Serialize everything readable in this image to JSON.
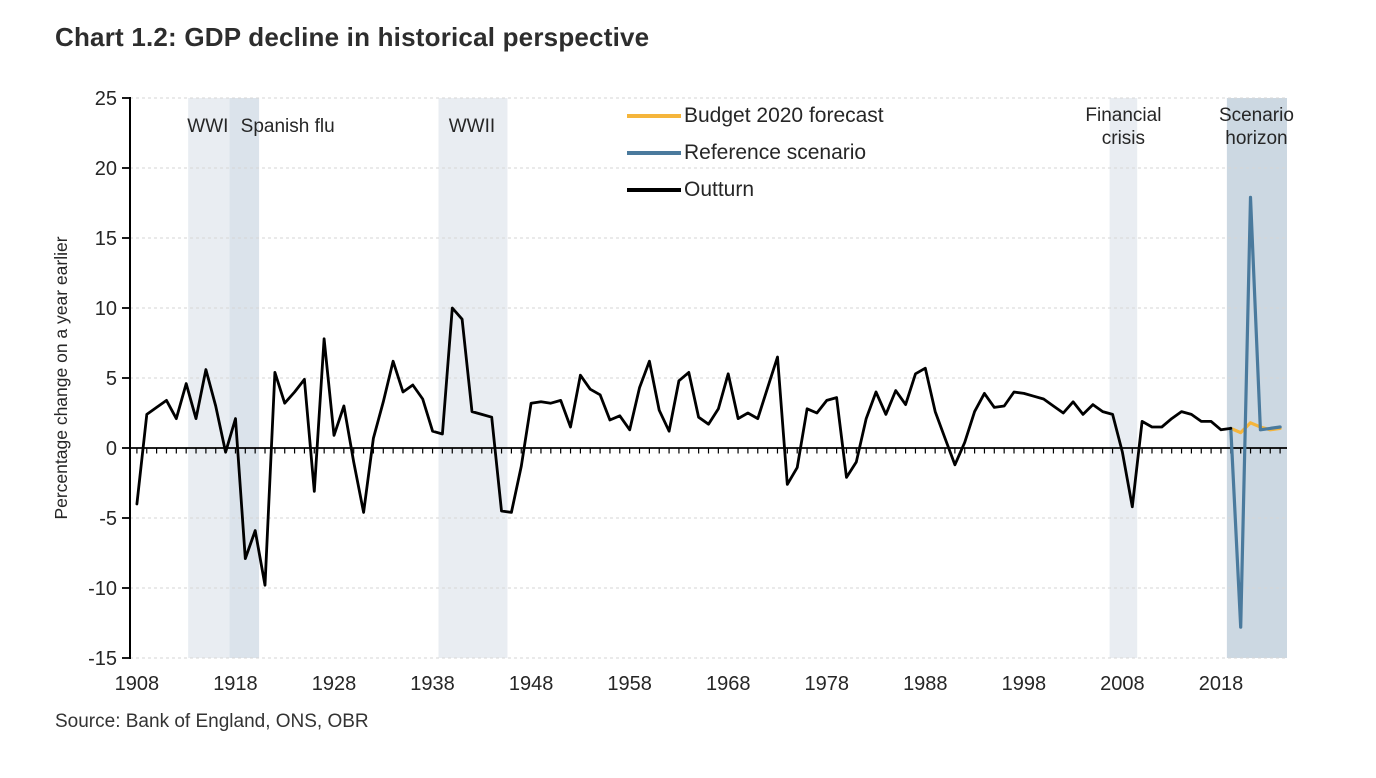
{
  "title": "Chart 1.2: GDP decline in historical perspective",
  "source": "Source: Bank of England, ONS, OBR",
  "legend": [
    {
      "label": "Budget 2020 forecast",
      "color": "#F5B53B"
    },
    {
      "label": "Reference scenario",
      "color": "#4A7A9D"
    },
    {
      "label": "Outturn",
      "color": "#000000"
    }
  ],
  "chart_data": {
    "type": "line",
    "title": "Chart 1.2: GDP decline in historical perspective",
    "xlabel": "",
    "ylabel": "Percentage change on a year earlier",
    "ylim": [
      -15,
      25
    ],
    "yticks": [
      25,
      20,
      15,
      10,
      5,
      0,
      -5,
      -10,
      -15
    ],
    "xlim": [
      1907.3,
      2024.7
    ],
    "xticks": [
      1908,
      1918,
      1928,
      1938,
      1948,
      1958,
      1968,
      1978,
      1988,
      1998,
      2008,
      2018
    ],
    "grid": "horizontal-dashed",
    "legend_position": "top-center",
    "zero_axis_year_ticks": true,
    "bands": [
      {
        "label": "WWI",
        "label_lines": [
          "WWI"
        ],
        "label_x": 1915.2,
        "from": 1913.2,
        "to": 1917.4,
        "color": "#E9EDF2"
      },
      {
        "label": "Spanish flu",
        "label_lines": [
          "Spanish flu"
        ],
        "label_x": 1923.3,
        "from": 1917.4,
        "to": 1920.4,
        "color": "#DBE3EB"
      },
      {
        "label": "WWII",
        "label_lines": [
          "WWII"
        ],
        "label_x": 1942.0,
        "from": 1938.6,
        "to": 1945.6,
        "color": "#E9EDF2"
      },
      {
        "label": "Financial crisis",
        "label_lines": [
          "Financial",
          "crisis"
        ],
        "label_x": 2008.1,
        "from": 2006.7,
        "to": 2009.5,
        "color": "#E9EDF2"
      },
      {
        "label": "Scenario horizon",
        "label_lines": [
          "Scenario",
          "horizon"
        ],
        "label_x": 2021.6,
        "from": 2018.6,
        "to": 2024.7,
        "color": "#CCD8E2"
      }
    ],
    "series": [
      {
        "name": "Budget 2020 forecast",
        "color": "#F5B53B",
        "width": 3.2,
        "x_start": 2019,
        "values": [
          1.4,
          1.1,
          1.8,
          1.5,
          1.3,
          1.4
        ]
      },
      {
        "name": "Reference scenario",
        "color": "#4A7A9D",
        "width": 3.2,
        "x_start": 2019,
        "values": [
          1.4,
          -12.8,
          17.9,
          1.3,
          1.4,
          1.5
        ]
      },
      {
        "name": "Outturn",
        "color": "#000000",
        "width": 2.8,
        "x_start": 1908,
        "values": [
          -4.0,
          2.4,
          2.9,
          3.4,
          2.1,
          4.6,
          2.1,
          5.6,
          3.0,
          -0.3,
          2.1,
          -7.9,
          -5.9,
          -9.8,
          5.4,
          3.2,
          4.0,
          4.9,
          -3.1,
          7.8,
          0.9,
          3.0,
          -1.0,
          -4.6,
          0.7,
          3.3,
          6.2,
          4.0,
          4.5,
          3.5,
          1.2,
          1.0,
          10.0,
          9.2,
          2.6,
          2.4,
          2.2,
          -4.5,
          -4.6,
          -1.3,
          3.2,
          3.3,
          3.2,
          3.4,
          1.5,
          5.2,
          4.2,
          3.8,
          2.0,
          2.3,
          1.3,
          4.3,
          6.2,
          2.7,
          1.2,
          4.8,
          5.4,
          2.2,
          1.7,
          2.8,
          5.3,
          2.1,
          2.5,
          2.1,
          4.3,
          6.5,
          -2.6,
          -1.4,
          2.8,
          2.5,
          3.4,
          3.6,
          -2.1,
          -1.0,
          2.1,
          4.0,
          2.4,
          4.1,
          3.1,
          5.3,
          5.7,
          2.6,
          0.7,
          -1.2,
          0.4,
          2.6,
          3.9,
          2.9,
          3.0,
          4.0,
          3.9,
          3.7,
          3.5,
          3.0,
          2.5,
          3.3,
          2.4,
          3.1,
          2.6,
          2.4,
          -0.3,
          -4.2,
          1.9,
          1.5,
          1.5,
          2.1,
          2.6,
          2.4,
          1.9,
          1.9,
          1.3,
          1.4
        ]
      }
    ]
  }
}
